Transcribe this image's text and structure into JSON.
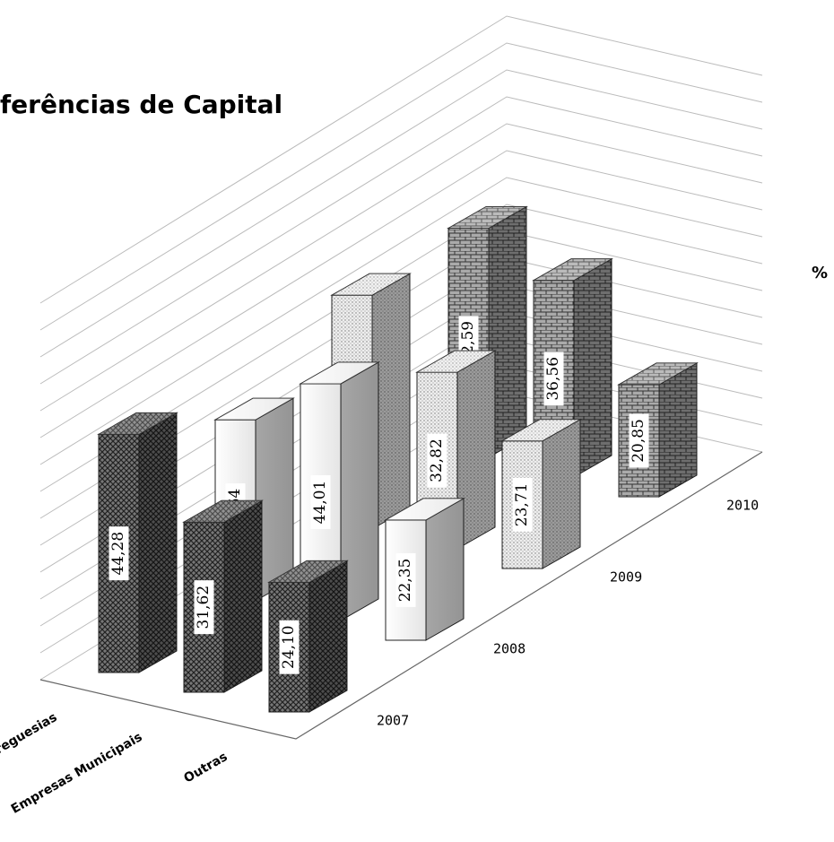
{
  "chart_data": {
    "type": "bar3d",
    "title": "ferências de Capital",
    "y_label": "%",
    "categories": [
      "Freguesias",
      "Empresas Municipais",
      "Outras"
    ],
    "ylim": [
      0,
      70
    ],
    "yticks": [
      0,
      5,
      10,
      15,
      20,
      25,
      30,
      35,
      40,
      45,
      50,
      55,
      60,
      65,
      70
    ],
    "grid": true,
    "series": [
      {
        "name": "2007",
        "color": "#555555",
        "values": [
          44.28,
          31.62,
          24.1
        ],
        "value_labels": [
          "44,28",
          "31,62",
          "24,10"
        ]
      },
      {
        "name": "2008",
        "color": "#f2f2f2",
        "values": [
          33.64,
          44.01,
          22.35
        ],
        "value_labels": [
          "33,64",
          "44,01",
          "22,35"
        ]
      },
      {
        "name": "2009",
        "color": "#dcdcdc",
        "values": [
          43.47,
          32.82,
          23.71
        ],
        "value_labels": [
          "43,47",
          "32,82",
          "23,71"
        ]
      },
      {
        "name": "2010",
        "color": "#9a9a9a",
        "values": [
          42.59,
          36.56,
          20.85
        ],
        "value_labels": [
          "42,59",
          "36,56",
          "20,85"
        ]
      }
    ]
  }
}
